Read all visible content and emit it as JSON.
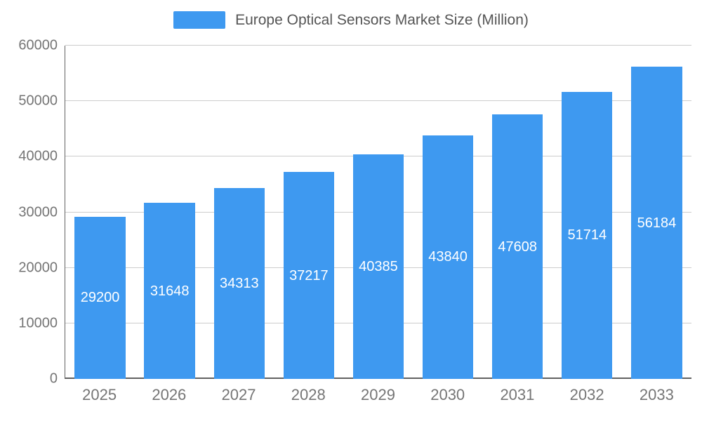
{
  "chart_data": {
    "type": "bar",
    "title": "Europe Optical Sensors Market Size (Million)",
    "categories": [
      "2025",
      "2026",
      "2027",
      "2028",
      "2029",
      "2030",
      "2031",
      "2032",
      "2033"
    ],
    "values": [
      29200,
      31648,
      34313,
      37217,
      40385,
      43840,
      47608,
      51714,
      56184
    ],
    "xlabel": "",
    "ylabel": "",
    "ylim": [
      0,
      60000
    ],
    "yticks": [
      0,
      10000,
      20000,
      30000,
      40000,
      50000,
      60000
    ],
    "grid": true,
    "legend_position": "top",
    "value_labels": "inside-bar-centered",
    "colors": {
      "bar": "#3E99F0",
      "value_label": "#ffffff",
      "axis_text": "#757575",
      "gridline": "#cccccc",
      "axis_line": "#616161",
      "title_text": "#555555",
      "background": "#ffffff"
    }
  }
}
